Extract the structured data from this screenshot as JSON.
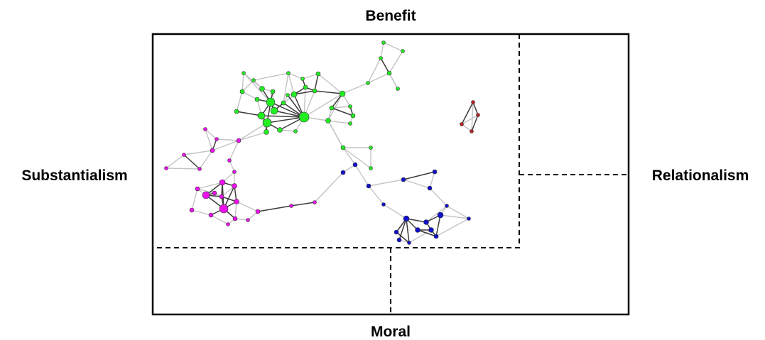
{
  "labels": {
    "top": "Benefit",
    "bottom": "Moral",
    "left": "Substantialism",
    "right": "Relationalism"
  },
  "colors": {
    "frame": "#000000",
    "green": "#22ee22",
    "magenta": "#ee11ee",
    "blue": "#1111cc",
    "red": "#bb2222",
    "edge_light": "#c4c4c4",
    "edge_dark": "#3c3c3c"
  }
}
